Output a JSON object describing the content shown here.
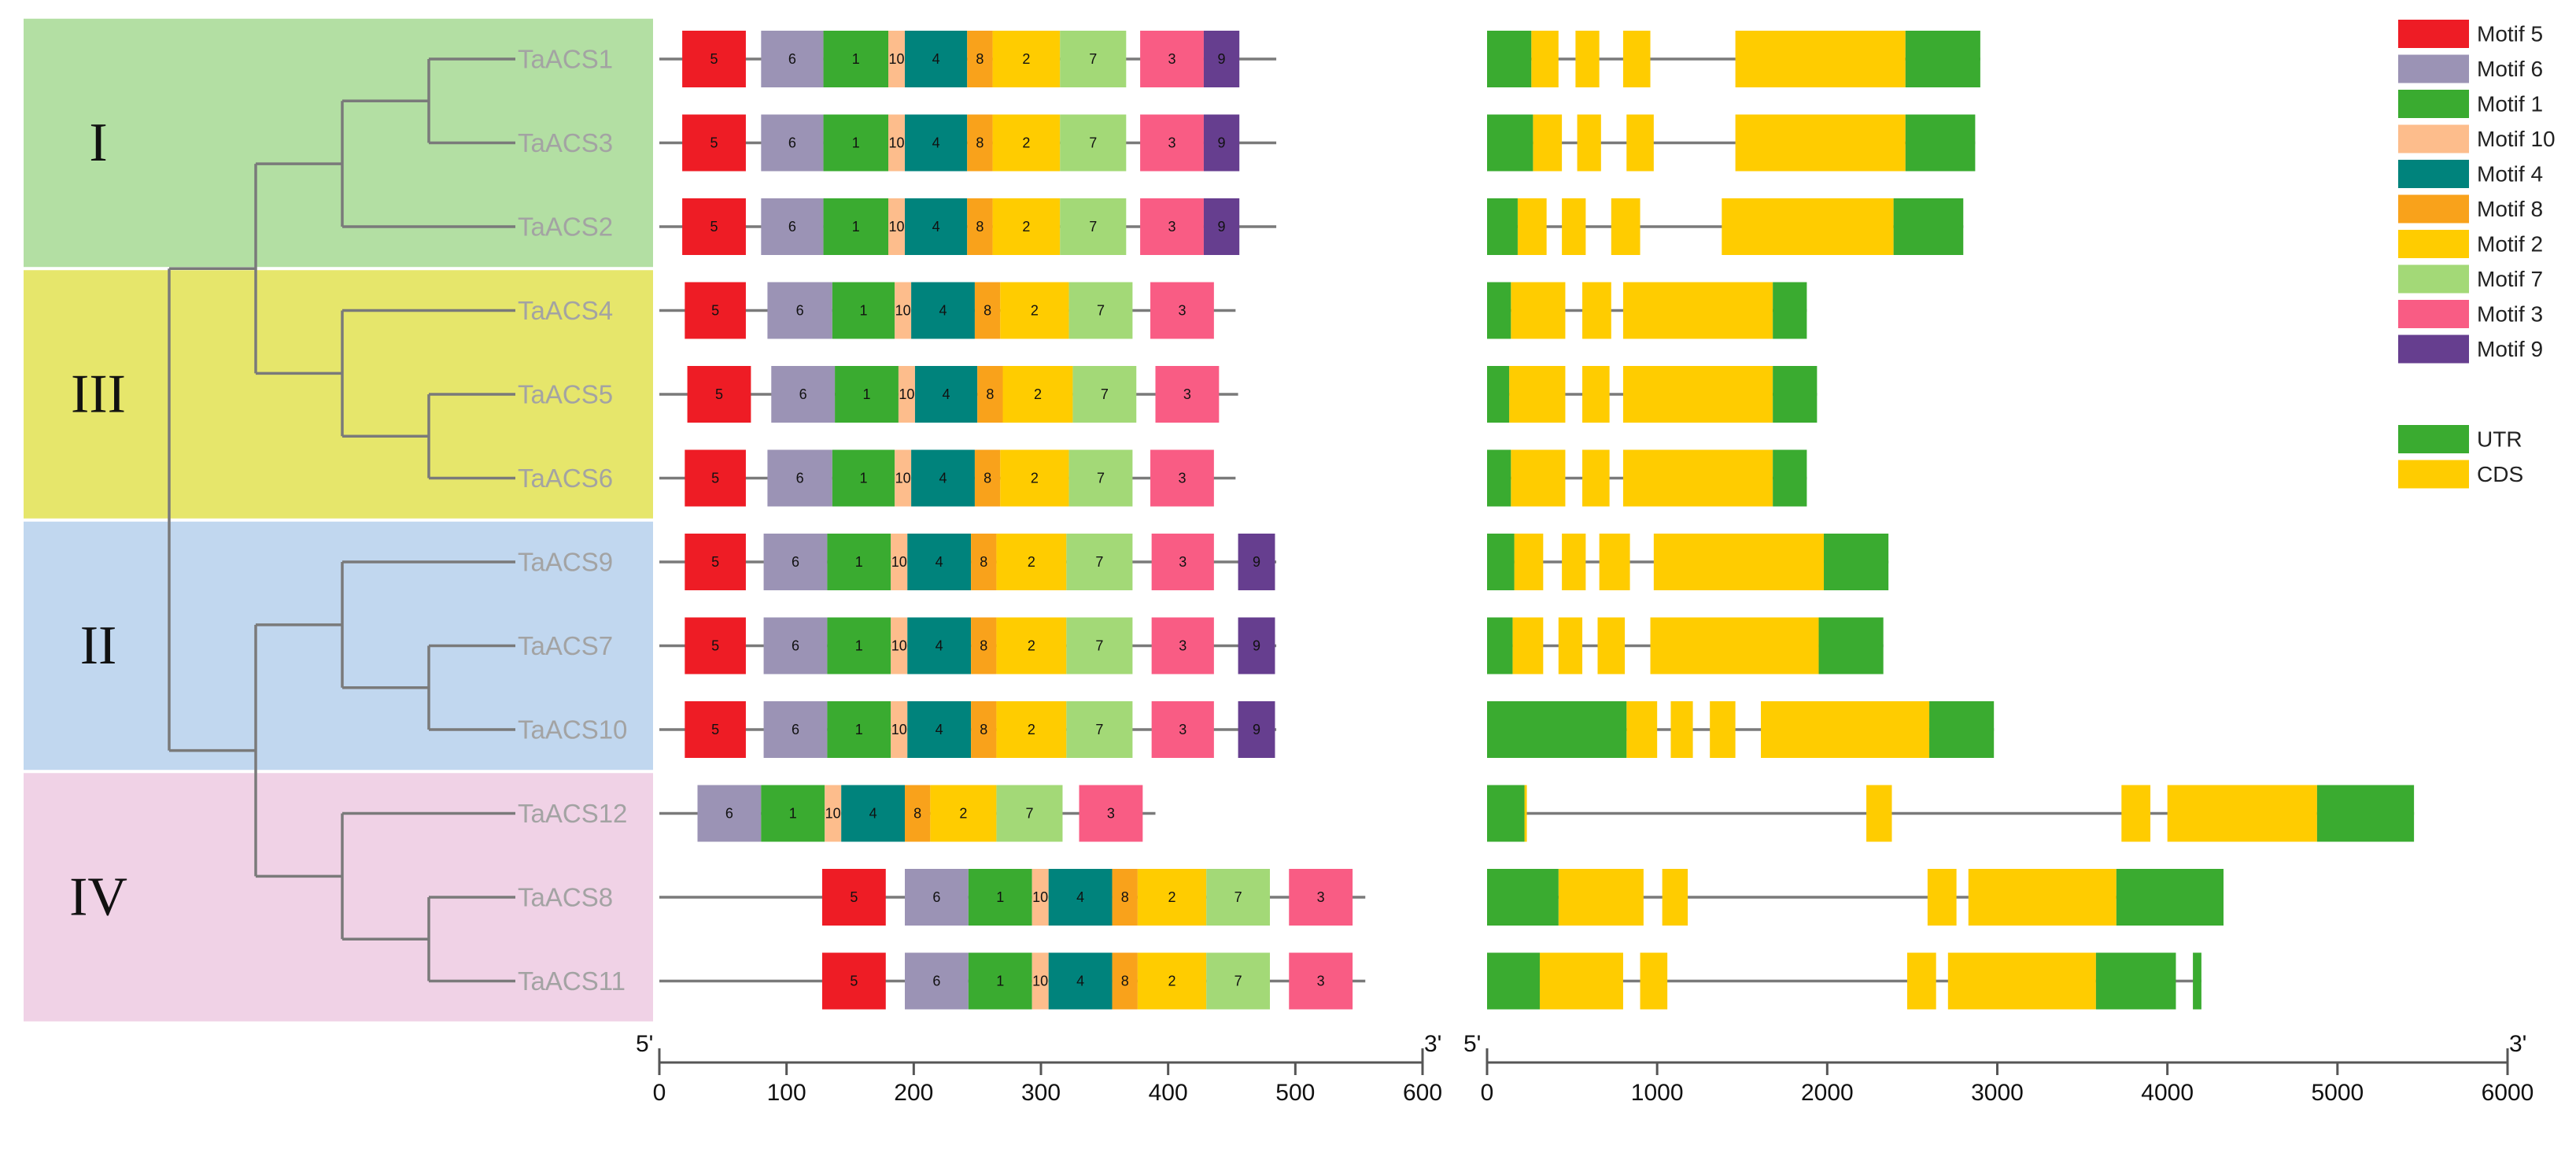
{
  "clades": [
    {
      "id": "I",
      "label": "I",
      "color": "#b3dfa3",
      "genes": [
        "TaACS1",
        "TaACS3",
        "TaACS2"
      ]
    },
    {
      "id": "III",
      "label": "III",
      "color": "#e6e66b",
      "genes": [
        "TaACS4",
        "TaACS5",
        "TaACS6"
      ]
    },
    {
      "id": "II",
      "label": "II",
      "color": "#c1d7ef",
      "genes": [
        "TaACS9",
        "TaACS7",
        "TaACS10"
      ]
    },
    {
      "id": "IV",
      "label": "IV",
      "color": "#f0d2e6",
      "genes": [
        "TaACS12",
        "TaACS8",
        "TaACS11"
      ]
    }
  ],
  "tree": {
    "branch_color": "#7a7a7a",
    "topology": "((((TaACS1,TaACS3),TaACS2),(TaACS4,(TaACS5,TaACS6))),((TaACS9,(TaACS7,TaACS10)),(TaACS12,(TaACS8,TaACS11))))"
  },
  "motif_legend": [
    {
      "id": 5,
      "label": "Motif 5",
      "color": "#ee1c25"
    },
    {
      "id": 6,
      "label": "Motif 6",
      "color": "#9b93b5"
    },
    {
      "id": 1,
      "label": "Motif 1",
      "color": "#3aab30"
    },
    {
      "id": 10,
      "label": "Motif 10",
      "color": "#fdbd8c"
    },
    {
      "id": 4,
      "label": "Motif 4",
      "color": "#00837c"
    },
    {
      "id": 8,
      "label": "Motif 8",
      "color": "#f9a21b"
    },
    {
      "id": 2,
      "label": "Motif 2",
      "color": "#ffcc00"
    },
    {
      "id": 7,
      "label": "Motif 7",
      "color": "#a3d977"
    },
    {
      "id": 3,
      "label": "Motif 3",
      "color": "#f95c84"
    },
    {
      "id": 9,
      "label": "Motif 9",
      "color": "#663e8f"
    }
  ],
  "gene_legend": [
    {
      "id": "UTR",
      "label": "UTR",
      "color": "#3aab30"
    },
    {
      "id": "CDS",
      "label": "CDS",
      "color": "#ffcc00"
    }
  ],
  "motif_axis": {
    "start_label": "5'",
    "end_label": "3'",
    "min": 0,
    "max": 600,
    "ticks": [
      0,
      100,
      200,
      300,
      400,
      500,
      600
    ]
  },
  "gene_axis": {
    "start_label": "5'",
    "end_label": "3'",
    "min": 0,
    "max": 6000,
    "ticks": [
      0,
      1000,
      2000,
      3000,
      4000,
      5000,
      6000
    ]
  },
  "genes": [
    {
      "name": "TaACS1",
      "protein_length": 485,
      "motifs": [
        [
          5,
          18,
          68
        ],
        [
          6,
          80,
          129
        ],
        [
          1,
          129,
          180
        ],
        [
          10,
          180,
          193
        ],
        [
          4,
          193,
          242
        ],
        [
          8,
          242,
          262
        ],
        [
          2,
          262,
          315
        ],
        [
          7,
          315,
          367
        ],
        [
          3,
          378,
          428
        ],
        [
          9,
          428,
          456
        ]
      ],
      "gene_length": 2900,
      "features": [
        [
          "CDS",
          260,
          420
        ],
        [
          "CDS",
          520,
          660
        ],
        [
          "CDS",
          800,
          960
        ],
        [
          "CDS",
          1460,
          2460
        ],
        [
          "UTR",
          0,
          260
        ],
        [
          "UTR",
          2460,
          2900
        ]
      ]
    },
    {
      "name": "TaACS3",
      "protein_length": 485,
      "motifs": [
        [
          5,
          18,
          68
        ],
        [
          6,
          80,
          129
        ],
        [
          1,
          129,
          180
        ],
        [
          10,
          180,
          193
        ],
        [
          4,
          193,
          242
        ],
        [
          8,
          242,
          262
        ],
        [
          2,
          262,
          315
        ],
        [
          7,
          315,
          367
        ],
        [
          3,
          378,
          428
        ],
        [
          9,
          428,
          456
        ]
      ],
      "gene_length": 2870,
      "features": [
        [
          "CDS",
          270,
          440
        ],
        [
          "CDS",
          530,
          670
        ],
        [
          "CDS",
          820,
          980
        ],
        [
          "CDS",
          1460,
          2460
        ],
        [
          "UTR",
          0,
          270
        ],
        [
          "UTR",
          2460,
          2870
        ]
      ]
    },
    {
      "name": "TaACS2",
      "protein_length": 485,
      "motifs": [
        [
          5,
          18,
          68
        ],
        [
          6,
          80,
          129
        ],
        [
          1,
          129,
          180
        ],
        [
          10,
          180,
          193
        ],
        [
          4,
          193,
          242
        ],
        [
          8,
          242,
          262
        ],
        [
          2,
          262,
          315
        ],
        [
          7,
          315,
          367
        ],
        [
          3,
          378,
          428
        ],
        [
          9,
          428,
          456
        ]
      ],
      "gene_length": 2800,
      "features": [
        [
          "CDS",
          180,
          350
        ],
        [
          "CDS",
          440,
          580
        ],
        [
          "CDS",
          730,
          900
        ],
        [
          "CDS",
          1380,
          2390
        ],
        [
          "UTR",
          0,
          180
        ],
        [
          "UTR",
          2390,
          2800
        ]
      ]
    },
    {
      "name": "TaACS4",
      "protein_length": 453,
      "motifs": [
        [
          5,
          20,
          68
        ],
        [
          6,
          85,
          136
        ],
        [
          1,
          136,
          185
        ],
        [
          10,
          185,
          198
        ],
        [
          4,
          198,
          248
        ],
        [
          8,
          248,
          268
        ],
        [
          2,
          268,
          322
        ],
        [
          7,
          322,
          372
        ],
        [
          3,
          386,
          436
        ]
      ],
      "gene_length": 1880,
      "features": [
        [
          "CDS",
          140,
          460
        ],
        [
          "CDS",
          560,
          730
        ],
        [
          "CDS",
          800,
          1680
        ],
        [
          "UTR",
          0,
          140
        ],
        [
          "UTR",
          1680,
          1880
        ]
      ]
    },
    {
      "name": "TaACS5",
      "protein_length": 455,
      "motifs": [
        [
          5,
          22,
          72
        ],
        [
          6,
          88,
          138
        ],
        [
          1,
          138,
          188
        ],
        [
          10,
          188,
          201
        ],
        [
          4,
          201,
          250
        ],
        [
          8,
          250,
          270
        ],
        [
          2,
          270,
          325
        ],
        [
          7,
          325,
          375
        ],
        [
          3,
          390,
          440
        ]
      ],
      "gene_length": 1940,
      "features": [
        [
          "CDS",
          130,
          460
        ],
        [
          "CDS",
          560,
          720
        ],
        [
          "CDS",
          800,
          1680
        ],
        [
          "UTR",
          0,
          130
        ],
        [
          "UTR",
          1680,
          1940
        ]
      ]
    },
    {
      "name": "TaACS6",
      "protein_length": 453,
      "motifs": [
        [
          5,
          20,
          68
        ],
        [
          6,
          85,
          136
        ],
        [
          1,
          136,
          185
        ],
        [
          10,
          185,
          198
        ],
        [
          4,
          198,
          248
        ],
        [
          8,
          248,
          268
        ],
        [
          2,
          268,
          322
        ],
        [
          7,
          322,
          372
        ],
        [
          3,
          386,
          436
        ]
      ],
      "gene_length": 1880,
      "features": [
        [
          "CDS",
          140,
          460
        ],
        [
          "CDS",
          560,
          720
        ],
        [
          "CDS",
          800,
          1680
        ],
        [
          "UTR",
          0,
          140
        ],
        [
          "UTR",
          1680,
          1880
        ]
      ]
    },
    {
      "name": "TaACS9",
      "protein_length": 485,
      "motifs": [
        [
          5,
          20,
          68
        ],
        [
          6,
          82,
          132
        ],
        [
          1,
          132,
          182
        ],
        [
          10,
          182,
          195
        ],
        [
          4,
          195,
          245
        ],
        [
          8,
          245,
          265
        ],
        [
          2,
          265,
          320
        ],
        [
          7,
          320,
          372
        ],
        [
          3,
          387,
          436
        ],
        [
          9,
          455,
          484
        ]
      ],
      "gene_length": 2360,
      "features": [
        [
          "CDS",
          160,
          330
        ],
        [
          "CDS",
          440,
          580
        ],
        [
          "CDS",
          660,
          840
        ],
        [
          "CDS",
          980,
          1980
        ],
        [
          "UTR",
          0,
          160
        ],
        [
          "UTR",
          1980,
          2360
        ]
      ]
    },
    {
      "name": "TaACS7",
      "protein_length": 485,
      "motifs": [
        [
          5,
          20,
          68
        ],
        [
          6,
          82,
          132
        ],
        [
          1,
          132,
          182
        ],
        [
          10,
          182,
          195
        ],
        [
          4,
          195,
          245
        ],
        [
          8,
          245,
          265
        ],
        [
          2,
          265,
          320
        ],
        [
          7,
          320,
          372
        ],
        [
          3,
          387,
          436
        ],
        [
          9,
          455,
          484
        ]
      ],
      "gene_length": 2330,
      "features": [
        [
          "CDS",
          150,
          330
        ],
        [
          "CDS",
          420,
          560
        ],
        [
          "CDS",
          650,
          810
        ],
        [
          "CDS",
          960,
          1950
        ],
        [
          "UTR",
          0,
          150
        ],
        [
          "UTR",
          1950,
          2330
        ]
      ]
    },
    {
      "name": "TaACS10",
      "protein_length": 485,
      "motifs": [
        [
          5,
          20,
          68
        ],
        [
          6,
          82,
          132
        ],
        [
          1,
          132,
          182
        ],
        [
          10,
          182,
          195
        ],
        [
          4,
          195,
          245
        ],
        [
          8,
          245,
          265
        ],
        [
          2,
          265,
          320
        ],
        [
          7,
          320,
          372
        ],
        [
          3,
          387,
          436
        ],
        [
          9,
          455,
          484
        ]
      ],
      "gene_length": 2980,
      "features": [
        [
          "CDS",
          820,
          1000
        ],
        [
          "CDS",
          1080,
          1210
        ],
        [
          "CDS",
          1310,
          1460
        ],
        [
          "CDS",
          1610,
          2600
        ],
        [
          "UTR",
          0,
          820
        ],
        [
          "UTR",
          2600,
          2980
        ]
      ]
    },
    {
      "name": "TaACS12",
      "protein_length": 390,
      "motifs": [
        [
          6,
          30,
          80
        ],
        [
          1,
          80,
          130
        ],
        [
          10,
          130,
          143
        ],
        [
          4,
          143,
          193
        ],
        [
          8,
          193,
          213
        ],
        [
          2,
          213,
          265
        ],
        [
          7,
          265,
          317
        ],
        [
          3,
          330,
          380
        ]
      ],
      "gene_length": 5450,
      "features": [
        [
          "CDS",
          220,
          230
        ],
        [
          "CDS",
          2230,
          2380
        ],
        [
          "CDS",
          3730,
          3900
        ],
        [
          "CDS",
          4000,
          4880
        ],
        [
          "UTR",
          0,
          220
        ],
        [
          "UTR",
          4880,
          5450
        ]
      ]
    },
    {
      "name": "TaACS8",
      "protein_length": 555,
      "motifs": [
        [
          5,
          128,
          178
        ],
        [
          6,
          193,
          243
        ],
        [
          1,
          243,
          293
        ],
        [
          10,
          293,
          306
        ],
        [
          4,
          306,
          356
        ],
        [
          8,
          356,
          376
        ],
        [
          2,
          376,
          430
        ],
        [
          7,
          430,
          480
        ],
        [
          3,
          495,
          545
        ]
      ],
      "gene_length": 4330,
      "features": [
        [
          "CDS",
          420,
          920
        ],
        [
          "CDS",
          1030,
          1180
        ],
        [
          "CDS",
          2590,
          2760
        ],
        [
          "CDS",
          2830,
          3700
        ],
        [
          "UTR",
          0,
          420
        ],
        [
          "UTR",
          3700,
          4330
        ]
      ]
    },
    {
      "name": "TaACS11",
      "protein_length": 555,
      "motifs": [
        [
          5,
          128,
          178
        ],
        [
          6,
          193,
          243
        ],
        [
          1,
          243,
          293
        ],
        [
          10,
          293,
          306
        ],
        [
          4,
          306,
          356
        ],
        [
          8,
          356,
          376
        ],
        [
          2,
          376,
          430
        ],
        [
          7,
          430,
          480
        ],
        [
          3,
          495,
          545
        ]
      ],
      "gene_length": 4200,
      "features": [
        [
          "CDS",
          310,
          800
        ],
        [
          "CDS",
          900,
          1060
        ],
        [
          "CDS",
          2470,
          2640
        ],
        [
          "CDS",
          2710,
          3580
        ],
        [
          "UTR",
          0,
          310
        ],
        [
          "UTR",
          3580,
          4050
        ],
        [
          "UTR",
          4150,
          4200
        ]
      ]
    }
  ]
}
